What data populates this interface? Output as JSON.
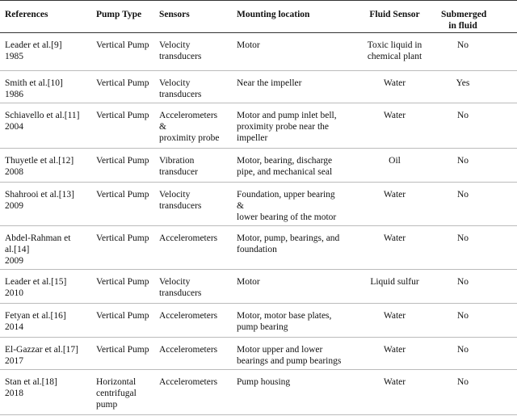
{
  "table": {
    "header": [
      [
        "References"
      ],
      [
        "Pump Type"
      ],
      [
        "Sensors"
      ],
      [
        "Mounting location"
      ],
      [
        "Fluid Sensor"
      ],
      [
        "Submerged",
        "in fluid"
      ]
    ],
    "rows": [
      [
        [
          "Leader et al.[9]",
          "1985"
        ],
        [
          "Vertical Pump"
        ],
        [
          "Velocity",
          "transducers"
        ],
        [
          "Motor"
        ],
        [
          "Toxic liquid in",
          "chemical plant"
        ],
        [
          "No"
        ]
      ],
      [
        [
          "Smith et al.[10]",
          "1986"
        ],
        [
          "Vertical Pump"
        ],
        [
          "Velocity",
          "transducers"
        ],
        [
          "Near the impeller"
        ],
        [
          "Water"
        ],
        [
          "Yes"
        ]
      ],
      [
        [
          "Schiavello et al.[11]",
          "2004"
        ],
        [
          "Vertical Pump"
        ],
        [
          "Accelerometers",
          "&",
          "proximity probe"
        ],
        [
          "Motor and pump inlet bell,",
          "proximity probe near the",
          "impeller"
        ],
        [
          "Water"
        ],
        [
          "No"
        ]
      ],
      [
        [
          "Thuyetle et al.[12]",
          "2008"
        ],
        [
          "Vertical Pump"
        ],
        [
          "Vibration",
          "transducer"
        ],
        [
          "Motor, bearing, discharge",
          "pipe, and mechanical seal"
        ],
        [
          "Oil"
        ],
        [
          "No"
        ]
      ],
      [
        [
          "Shahrooi et al.[13]",
          "2009"
        ],
        [
          "Vertical Pump"
        ],
        [
          "Velocity",
          "transducers"
        ],
        [
          "Foundation, upper bearing",
          "&",
          "lower bearing of the motor"
        ],
        [
          "Water"
        ],
        [
          "No"
        ]
      ],
      [
        [
          "Abdel-Rahman et",
          "al.[14]",
          "2009"
        ],
        [
          "Vertical Pump"
        ],
        [
          "Accelerometers"
        ],
        [
          "Motor, pump, bearings, and",
          "foundation"
        ],
        [
          "Water"
        ],
        [
          "No"
        ]
      ],
      [
        [
          "Leader et al.[15]",
          "2010"
        ],
        [
          "Vertical Pump"
        ],
        [
          "Velocity",
          "transducers"
        ],
        [
          "Motor"
        ],
        [
          "Liquid sulfur"
        ],
        [
          "No"
        ]
      ],
      [
        [
          "Fetyan et al.[16]",
          "2014"
        ],
        [
          "Vertical Pump"
        ],
        [
          "Accelerometers"
        ],
        [
          "Motor, motor base plates,",
          "pump bearing"
        ],
        [
          "Water"
        ],
        [
          "No"
        ]
      ],
      [
        [
          "El-Gazzar et al.[17]",
          "2017"
        ],
        [
          "Vertical Pump"
        ],
        [
          "Accelerometers"
        ],
        [
          "Motor upper and lower",
          "bearings and pump bearings"
        ],
        [
          "Water"
        ],
        [
          "No"
        ]
      ],
      [
        [
          "Stan et al.[18]",
          "2018"
        ],
        [
          "Horizontal",
          "centrifugal",
          "pump"
        ],
        [
          "Accelerometers"
        ],
        [
          "Pump housing"
        ],
        [
          "Water"
        ],
        [
          "No"
        ]
      ]
    ]
  }
}
